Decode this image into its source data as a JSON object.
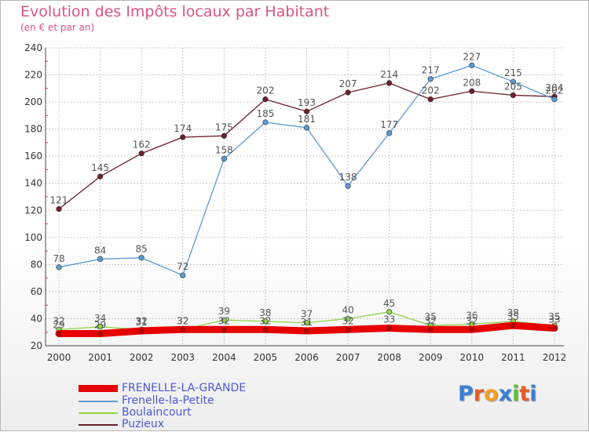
{
  "header": {
    "title": "Evolution des Impôts locaux par Habitant",
    "subtitle": "(en € et par an)"
  },
  "logo": {
    "text": "Proxiti"
  },
  "colors": {
    "title": "#d9557f",
    "legend_text": "#4c58d6",
    "axis": "#444444",
    "grid": "#c8c8c8"
  },
  "chart_data": {
    "type": "line",
    "title": "Evolution des Impôts locaux par Habitant",
    "subtitle": "(en € et par an)",
    "xlabel": "",
    "ylabel": "",
    "x": [
      "2000",
      "2001",
      "2002",
      "2003",
      "2004",
      "2005",
      "2006",
      "2007",
      "2008",
      "2009",
      "2010",
      "2011",
      "2012"
    ],
    "ylim": [
      20,
      240
    ],
    "yticks": [
      20,
      40,
      60,
      80,
      100,
      120,
      140,
      160,
      180,
      200,
      220,
      240
    ],
    "grid": true,
    "legend_position": "bottom-left",
    "series": [
      {
        "name": "FRENELLE-LA-GRANDE",
        "color": "#e60000",
        "values": [
          29,
          29,
          31,
          32,
          32,
          32,
          31,
          32,
          33,
          32,
          32,
          35,
          33
        ]
      },
      {
        "name": "Frenelle-la-Petite",
        "color": "#5b9bd5",
        "values": [
          78,
          84,
          85,
          72,
          158,
          185,
          181,
          138,
          177,
          217,
          227,
          215,
          202
        ]
      },
      {
        "name": "Boulaincourt",
        "color": "#8fd44a",
        "values": [
          32,
          34,
          32,
          32,
          39,
          38,
          37,
          40,
          45,
          35,
          36,
          38,
          35
        ]
      },
      {
        "name": "Puzieux",
        "color": "#6b1f2a",
        "values": [
          121,
          145,
          162,
          174,
          175,
          202,
          193,
          207,
          214,
          202,
          208,
          205,
          204
        ]
      }
    ]
  }
}
